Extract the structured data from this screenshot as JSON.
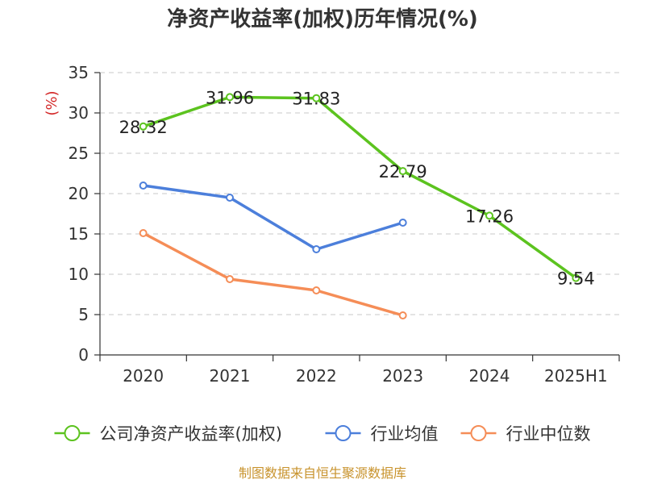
{
  "chart_data": {
    "type": "line",
    "title": "净资产收益率(加权)历年情况(%)",
    "ylabel": "(%)",
    "xlabel": "",
    "categories": [
      "2020",
      "2021",
      "2022",
      "2023",
      "2024",
      "2025H1"
    ],
    "yticks": [
      "0",
      "5",
      "10",
      "15",
      "20",
      "25",
      "30",
      "35"
    ],
    "ylim": [
      0,
      35
    ],
    "grid": true,
    "legend_position": "bottom",
    "series": [
      {
        "name": "公司净资产收益率(加权)",
        "color": "#5cc31f",
        "values": [
          28.32,
          31.96,
          31.83,
          22.79,
          17.26,
          9.54
        ],
        "labels": [
          "28.32",
          "31.96",
          "31.83",
          "22.79",
          "17.26",
          "9.54"
        ]
      },
      {
        "name": "行业均值",
        "color": "#4c7fdb",
        "values": [
          21.0,
          19.5,
          13.1,
          16.4,
          null,
          null
        ]
      },
      {
        "name": "行业中位数",
        "color": "#f58d57",
        "values": [
          15.1,
          9.4,
          8.0,
          4.9,
          null,
          null
        ]
      }
    ]
  },
  "source": "制图数据来自恒生聚源数据库"
}
